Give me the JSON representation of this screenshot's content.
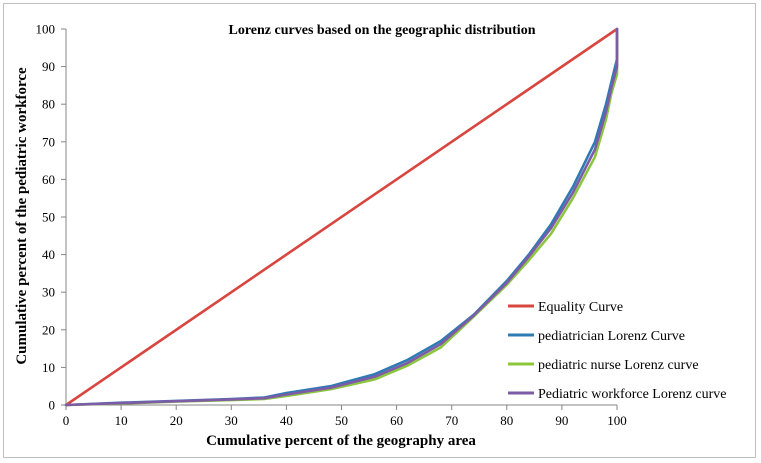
{
  "chart_data": {
    "type": "line",
    "title": "Lorenz curves based on the geographic distribution",
    "xlabel": "Cumulative percent  of the geography area",
    "ylabel": "Cumulative percent  of the pediatric workforce",
    "xlim": [
      0,
      100
    ],
    "ylim": [
      0,
      100
    ],
    "xticks": [
      0,
      10,
      20,
      30,
      40,
      50,
      60,
      70,
      80,
      90,
      100
    ],
    "yticks": [
      0,
      10,
      20,
      30,
      40,
      50,
      60,
      70,
      80,
      90,
      100
    ],
    "grid": false,
    "legend_position": "bottom-right",
    "series": [
      {
        "name": "Equality Curve",
        "color": "#d9453f",
        "x": [
          0,
          100
        ],
        "y": [
          0,
          100
        ]
      },
      {
        "name": "pediatrician Lorenz Curve",
        "color": "#2e7bb4",
        "x": [
          0,
          10,
          20,
          30,
          36,
          40,
          48,
          56,
          62,
          68,
          74,
          80,
          84,
          88,
          92,
          96,
          98,
          99,
          100,
          100
        ],
        "y": [
          0,
          0.6,
          1.1,
          1.6,
          2.0,
          3.2,
          5.0,
          8.2,
          12.0,
          17.0,
          24.0,
          33.0,
          40.0,
          48.0,
          58.0,
          70.0,
          80.0,
          86.0,
          92.0,
          100.0
        ]
      },
      {
        "name": "pediatric nurse Lorenz curve",
        "color": "#8cc63f",
        "x": [
          0,
          10,
          20,
          30,
          36,
          40,
          48,
          56,
          62,
          68,
          74,
          80,
          84,
          88,
          92,
          96,
          98,
          99,
          100,
          100
        ],
        "y": [
          0,
          0.4,
          0.9,
          1.3,
          1.6,
          2.4,
          4.2,
          6.8,
          10.5,
          15.3,
          23.5,
          32.0,
          38.5,
          45.5,
          55.0,
          66.0,
          76.0,
          83.0,
          88.0,
          100.0
        ]
      },
      {
        "name": "Pediatric workforce Lorenz curve",
        "color": "#7d5ba6",
        "x": [
          0,
          10,
          20,
          30,
          36,
          40,
          48,
          56,
          62,
          68,
          74,
          80,
          84,
          88,
          92,
          96,
          98,
          99,
          100,
          100
        ],
        "y": [
          0,
          0.5,
          1.0,
          1.5,
          1.8,
          2.8,
          4.6,
          7.5,
          11.2,
          16.2,
          23.8,
          32.5,
          39.5,
          47.0,
          56.5,
          68.0,
          78.0,
          84.5,
          90.0,
          100.0
        ]
      }
    ]
  }
}
